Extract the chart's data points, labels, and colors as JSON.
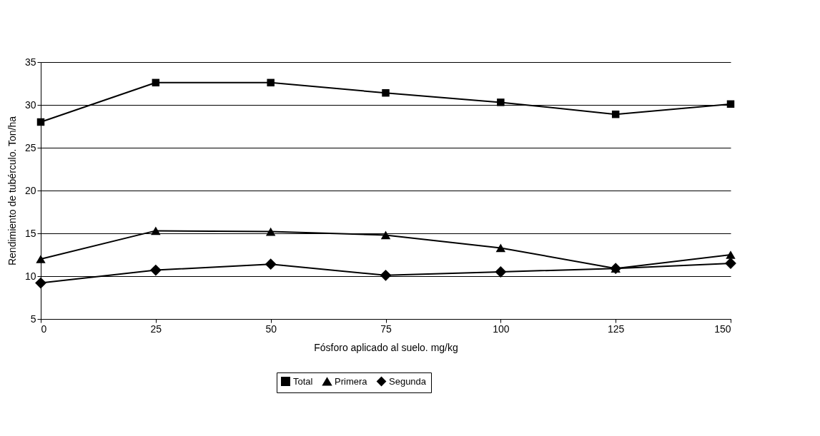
{
  "chart_data": {
    "type": "line",
    "xlabel": "Fósforo aplicado al suelo. mg/kg",
    "ylabel": "Rendimiento de tubérculo. Ton/ha",
    "x": [
      0,
      25,
      50,
      75,
      100,
      125,
      150
    ],
    "series": [
      {
        "name": "Total",
        "color": "#000000",
        "marker": "square",
        "values": [
          28,
          32.6,
          32.6,
          31.4,
          30.3,
          28.9,
          30.1
        ]
      },
      {
        "name": "Primera",
        "color": "#000000",
        "marker": "triangle",
        "values": [
          12,
          15.3,
          15.2,
          14.8,
          13.3,
          10.9,
          12.5
        ]
      },
      {
        "name": "Segunda",
        "color": "#000000",
        "marker": "diamond",
        "values": [
          9.2,
          10.7,
          11.4,
          10.1,
          10.5,
          10.9,
          11.5
        ]
      }
    ],
    "xlim": [
      0,
      150
    ],
    "xticks": [
      0,
      25,
      50,
      75,
      100,
      125,
      150
    ],
    "ylim": [
      5,
      35
    ],
    "yticks": [
      5,
      10,
      15,
      20,
      25,
      30,
      35
    ],
    "grid": "y",
    "legend": "bottom",
    "line_style": "solid"
  }
}
